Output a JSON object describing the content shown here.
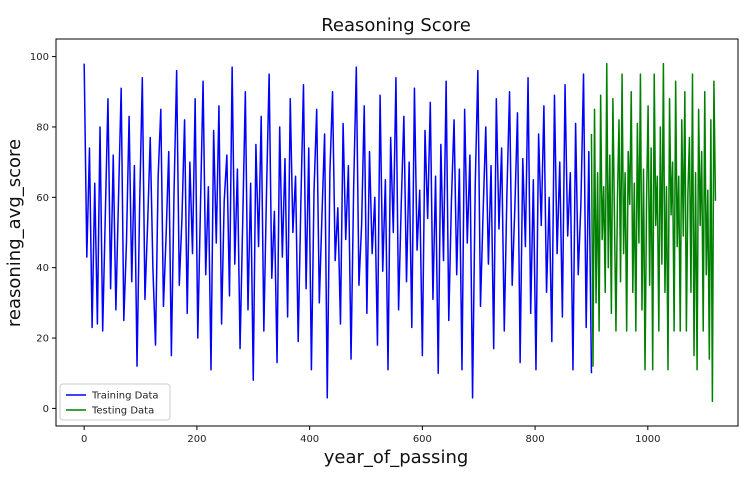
{
  "chart_data": {
    "type": "line",
    "title": "Reasoning Score",
    "xlabel": "year_of_passing",
    "ylabel": "reasoning_avg_score",
    "xlim": [
      -50,
      1160
    ],
    "ylim": [
      -5,
      105
    ],
    "xticks": [
      0,
      200,
      400,
      600,
      800,
      1000
    ],
    "yticks": [
      0,
      20,
      40,
      60,
      80,
      100
    ],
    "grid": false,
    "legend_position": "lower-left",
    "series": [
      {
        "name": "Training Data",
        "color": "#0000ff",
        "x_range": [
          0,
          900
        ],
        "values_summary": "dense noisy series spanning roughly 3 to 98",
        "values": [
          98,
          43,
          74,
          23,
          64,
          24,
          80,
          22,
          55,
          88,
          34,
          72,
          28,
          60,
          91,
          25,
          47,
          83,
          36,
          69,
          12,
          58,
          94,
          31,
          52,
          77,
          40,
          18,
          66,
          85,
          29,
          49,
          73,
          15,
          61,
          96,
          35,
          54,
          82,
          27,
          70,
          44,
          88,
          20,
          57,
          93,
          38,
          63,
          11,
          79,
          47,
          86,
          24,
          59,
          72,
          32,
          97,
          41,
          68,
          17,
          53,
          90,
          28,
          64,
          8,
          75,
          46,
          83,
          22,
          61,
          95,
          37,
          56,
          13,
          80,
          43,
          71,
          26,
          88,
          50,
          66,
          19,
          58,
          92,
          34,
          74,
          11,
          62,
          85,
          30,
          55,
          78,
          3,
          67,
          90,
          42,
          57,
          24,
          81,
          48,
          69,
          14,
          63,
          97,
          35,
          52,
          86,
          27,
          73,
          44,
          60,
          18,
          89,
          39,
          65,
          11,
          77,
          50,
          94,
          28,
          58,
          83,
          36,
          70,
          23,
          91,
          45,
          62,
          15,
          79,
          54,
          87,
          31,
          66,
          10,
          75,
          42,
          93,
          25,
          59,
          82,
          38,
          68,
          11,
          85,
          47,
          72,
          3,
          63,
          96,
          29,
          56,
          80,
          41,
          69,
          17,
          88,
          51,
          74,
          22,
          61,
          90,
          35,
          57,
          84,
          13,
          71,
          46,
          94,
          27,
          65,
          11,
          78,
          52,
          86,
          33,
          60,
          19,
          89,
          44,
          70,
          26,
          92,
          49,
          67,
          11,
          81,
          38,
          58,
          95,
          23,
          73,
          10
        ]
      },
      {
        "name": "Testing Data",
        "color": "#008000",
        "x_range": [
          900,
          1120
        ],
        "values_summary": "dense noisy series spanning roughly 2 to 98",
        "values": [
          78,
          12,
          85,
          30,
          67,
          22,
          89,
          48,
          63,
          33,
          98,
          40,
          72,
          27,
          88,
          55,
          22,
          60,
          82,
          36,
          95,
          44,
          67,
          22,
          73,
          58,
          90,
          33,
          64,
          22,
          81,
          47,
          95,
          28,
          68,
          11,
          59,
          86,
          35,
          74,
          11,
          95,
          52,
          66,
          22,
          80,
          41,
          98,
          33,
          63,
          11,
          88,
          55,
          70,
          22,
          93,
          46,
          66,
          22,
          82,
          49,
          90,
          22,
          61,
          77,
          33,
          95,
          15,
          67,
          11,
          85,
          52,
          73,
          22,
          90,
          38,
          62,
          14,
          82,
          2,
          93,
          59
        ]
      }
    ]
  }
}
